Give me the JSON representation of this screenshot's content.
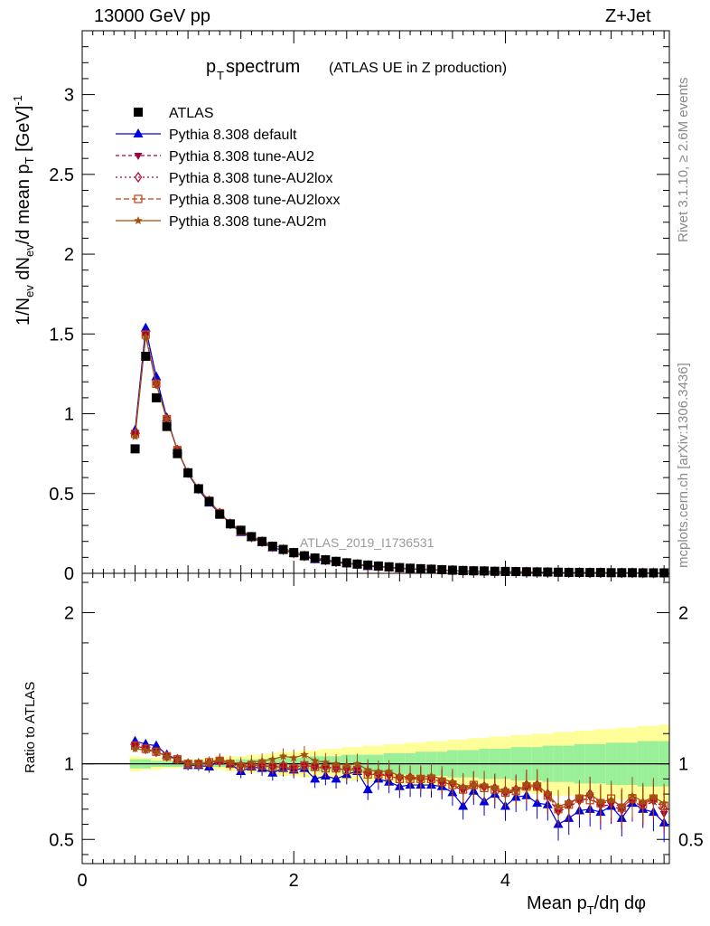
{
  "header": {
    "left": "13000 GeV pp",
    "right": "Z+Jet"
  },
  "side_labels": {
    "rivet": "Rivet 3.1.10, ≥ 2.6M events",
    "mcplots": "mcplots.cern.ch [arXiv:1306.3436]"
  },
  "chart_data": {
    "type": "scatter",
    "title_main": "p",
    "title_sub": "T",
    "title_rest": " spectrum",
    "title_paren": "(ATLAS UE in Z production)",
    "watermark": "ATLAS_2019_I1736531",
    "ylabel": "1/N_ev dN_ev/d mean p_T [GeV]^-1",
    "ratio_ylabel": "Ratio to ATLAS",
    "xlabel": "Mean p_T/dη dφ",
    "xlim": [
      0,
      5.55
    ],
    "ylim": [
      0,
      3.4
    ],
    "ratio_ylim": [
      0.34,
      2.26
    ],
    "xticks": [
      "0",
      "2",
      "4"
    ],
    "yticks": [
      "0",
      "0.5",
      "1",
      "1.5",
      "2",
      "2.5",
      "3"
    ],
    "ratio_yticks": [
      "0.5",
      "1",
      "2"
    ],
    "legend": [
      {
        "name": "ATLAS",
        "marker": "square",
        "color": "#000000"
      },
      {
        "name": "Pythia 8.308 default",
        "marker": "triangle",
        "color": "#0000dd"
      },
      {
        "name": "Pythia 8.308 tune-AU2",
        "marker": "triangle-down",
        "color": "#a00040"
      },
      {
        "name": "Pythia 8.308 tune-AU2lox",
        "marker": "diamond",
        "color": "#b00030"
      },
      {
        "name": "Pythia 8.308 tune-AU2loxx",
        "marker": "open-square",
        "color": "#c04010"
      },
      {
        "name": "Pythia 8.308 tune-AU2m",
        "marker": "star",
        "color": "#a05010"
      }
    ],
    "x": [
      0.5,
      0.6,
      0.7,
      0.8,
      0.9,
      1.0,
      1.1,
      1.2,
      1.3,
      1.4,
      1.5,
      1.6,
      1.7,
      1.8,
      1.9,
      2.0,
      2.1,
      2.2,
      2.3,
      2.4,
      2.5,
      2.6,
      2.7,
      2.8,
      2.9,
      3.0,
      3.1,
      3.2,
      3.3,
      3.4,
      3.5,
      3.6,
      3.7,
      3.8,
      3.9,
      4.0,
      4.1,
      4.2,
      4.3,
      4.4,
      4.5,
      4.6,
      4.7,
      4.8,
      4.9,
      5.0,
      5.1,
      5.2,
      5.3,
      5.4,
      5.5
    ],
    "atlas": [
      0.78,
      1.36,
      1.1,
      0.92,
      0.75,
      0.63,
      0.53,
      0.45,
      0.37,
      0.31,
      0.27,
      0.23,
      0.2,
      0.17,
      0.15,
      0.13,
      0.11,
      0.096,
      0.085,
      0.075,
      0.066,
      0.058,
      0.052,
      0.046,
      0.041,
      0.036,
      0.032,
      0.029,
      0.026,
      0.023,
      0.02,
      0.018,
      0.016,
      0.015,
      0.013,
      0.012,
      0.011,
      0.01,
      0.009,
      0.008,
      0.007,
      0.006,
      0.006,
      0.005,
      0.005,
      0.004,
      0.004,
      0.004,
      0.003,
      0.003,
      0.003
    ],
    "ratios": [
      {
        "name": "Pythia 8.308 default",
        "values": [
          1.15,
          1.13,
          1.12,
          1.06,
          1.03,
          0.99,
          0.99,
          0.98,
          1.02,
          1.0,
          0.95,
          0.98,
          0.97,
          0.94,
          0.97,
          0.96,
          0.97,
          0.9,
          0.92,
          0.9,
          0.93,
          0.95,
          0.83,
          0.9,
          0.88,
          0.85,
          0.86,
          0.86,
          0.86,
          0.85,
          0.81,
          0.72,
          0.82,
          0.75,
          0.8,
          0.72,
          0.78,
          0.79,
          0.74,
          0.73,
          0.6,
          0.64,
          0.69,
          0.7,
          0.68,
          0.72,
          0.64,
          0.74,
          0.7,
          0.68,
          0.61
        ]
      },
      {
        "name": "Pythia 8.308 tune-AU2",
        "values": [
          1.12,
          1.1,
          1.08,
          1.05,
          1.03,
          1.0,
          1.0,
          1.0,
          1.02,
          1.0,
          0.98,
          0.98,
          0.99,
          0.98,
          0.98,
          0.97,
          0.99,
          0.98,
          0.97,
          0.97,
          0.96,
          0.96,
          0.93,
          0.93,
          0.92,
          0.9,
          0.9,
          0.9,
          0.9,
          0.88,
          0.86,
          0.82,
          0.85,
          0.84,
          0.83,
          0.8,
          0.82,
          0.84,
          0.84,
          0.78,
          0.68,
          0.72,
          0.75,
          0.78,
          0.72,
          0.73,
          0.69,
          0.75,
          0.72,
          0.75,
          0.67
        ]
      },
      {
        "name": "Pythia 8.308 tune-AU2lox",
        "values": [
          1.12,
          1.1,
          1.08,
          1.05,
          1.03,
          1.0,
          1.0,
          1.01,
          1.02,
          1.0,
          0.99,
          0.99,
          0.99,
          0.98,
          0.99,
          0.98,
          0.99,
          0.98,
          0.98,
          0.97,
          0.97,
          0.97,
          0.94,
          0.93,
          0.93,
          0.91,
          0.91,
          0.9,
          0.9,
          0.88,
          0.87,
          0.84,
          0.86,
          0.85,
          0.84,
          0.82,
          0.83,
          0.86,
          0.86,
          0.8,
          0.7,
          0.74,
          0.77,
          0.8,
          0.74,
          0.75,
          0.71,
          0.77,
          0.74,
          0.77,
          0.7
        ]
      },
      {
        "name": "Pythia 8.308 tune-AU2loxx",
        "values": [
          1.12,
          1.1,
          1.08,
          1.05,
          1.03,
          1.0,
          1.0,
          1.01,
          1.02,
          1.0,
          0.98,
          0.99,
          0.99,
          0.98,
          0.98,
          0.97,
          0.99,
          0.98,
          0.97,
          0.97,
          0.96,
          0.96,
          0.93,
          0.93,
          0.92,
          0.9,
          0.9,
          0.9,
          0.9,
          0.88,
          0.86,
          0.83,
          0.86,
          0.84,
          0.83,
          0.81,
          0.82,
          0.85,
          0.85,
          0.79,
          0.7,
          0.73,
          0.77,
          0.76,
          0.74,
          0.77,
          0.71,
          0.77,
          0.73,
          0.77,
          0.72
        ]
      },
      {
        "name": "Pythia 8.308 tune-AU2m",
        "values": [
          1.1,
          1.09,
          1.08,
          1.05,
          1.03,
          1.0,
          1.0,
          1.01,
          1.03,
          1.01,
          1.0,
          1.01,
          1.02,
          1.03,
          1.05,
          1.04,
          1.06,
          1.02,
          1.01,
          1.0,
          0.99,
          1.0,
          0.96,
          0.95,
          0.95,
          0.92,
          0.91,
          0.91,
          0.92,
          0.9,
          0.88,
          0.85,
          0.86,
          0.86,
          0.84,
          0.82,
          0.82,
          0.86,
          0.86,
          0.8,
          0.72,
          0.74,
          0.78,
          0.8,
          0.75,
          0.76,
          0.72,
          0.79,
          0.75,
          0.78,
          0.74
        ]
      }
    ],
    "band_yellow_halfwidth": [
      0.05,
      0.04,
      0.04,
      0.03,
      0.03,
      0.03,
      0.03,
      0.04,
      0.04,
      0.05,
      0.05,
      0.06,
      0.06,
      0.07,
      0.08,
      0.08,
      0.09,
      0.09,
      0.1,
      0.1,
      0.11,
      0.11,
      0.12,
      0.12,
      0.13,
      0.13,
      0.14,
      0.14,
      0.15,
      0.15,
      0.16,
      0.16,
      0.17,
      0.17,
      0.18,
      0.18,
      0.19,
      0.19,
      0.2,
      0.2,
      0.21,
      0.21,
      0.22,
      0.22,
      0.23,
      0.23,
      0.24,
      0.24,
      0.25,
      0.25,
      0.26
    ],
    "band_green_halfwidth": [
      0.03,
      0.03,
      0.02,
      0.02,
      0.02,
      0.02,
      0.02,
      0.02,
      0.02,
      0.02,
      0.03,
      0.03,
      0.03,
      0.04,
      0.04,
      0.04,
      0.04,
      0.05,
      0.05,
      0.05,
      0.06,
      0.06,
      0.06,
      0.06,
      0.07,
      0.07,
      0.07,
      0.08,
      0.08,
      0.08,
      0.09,
      0.09,
      0.09,
      0.1,
      0.1,
      0.1,
      0.11,
      0.11,
      0.11,
      0.12,
      0.12,
      0.12,
      0.13,
      0.13,
      0.13,
      0.14,
      0.14,
      0.14,
      0.15,
      0.15,
      0.15
    ]
  }
}
